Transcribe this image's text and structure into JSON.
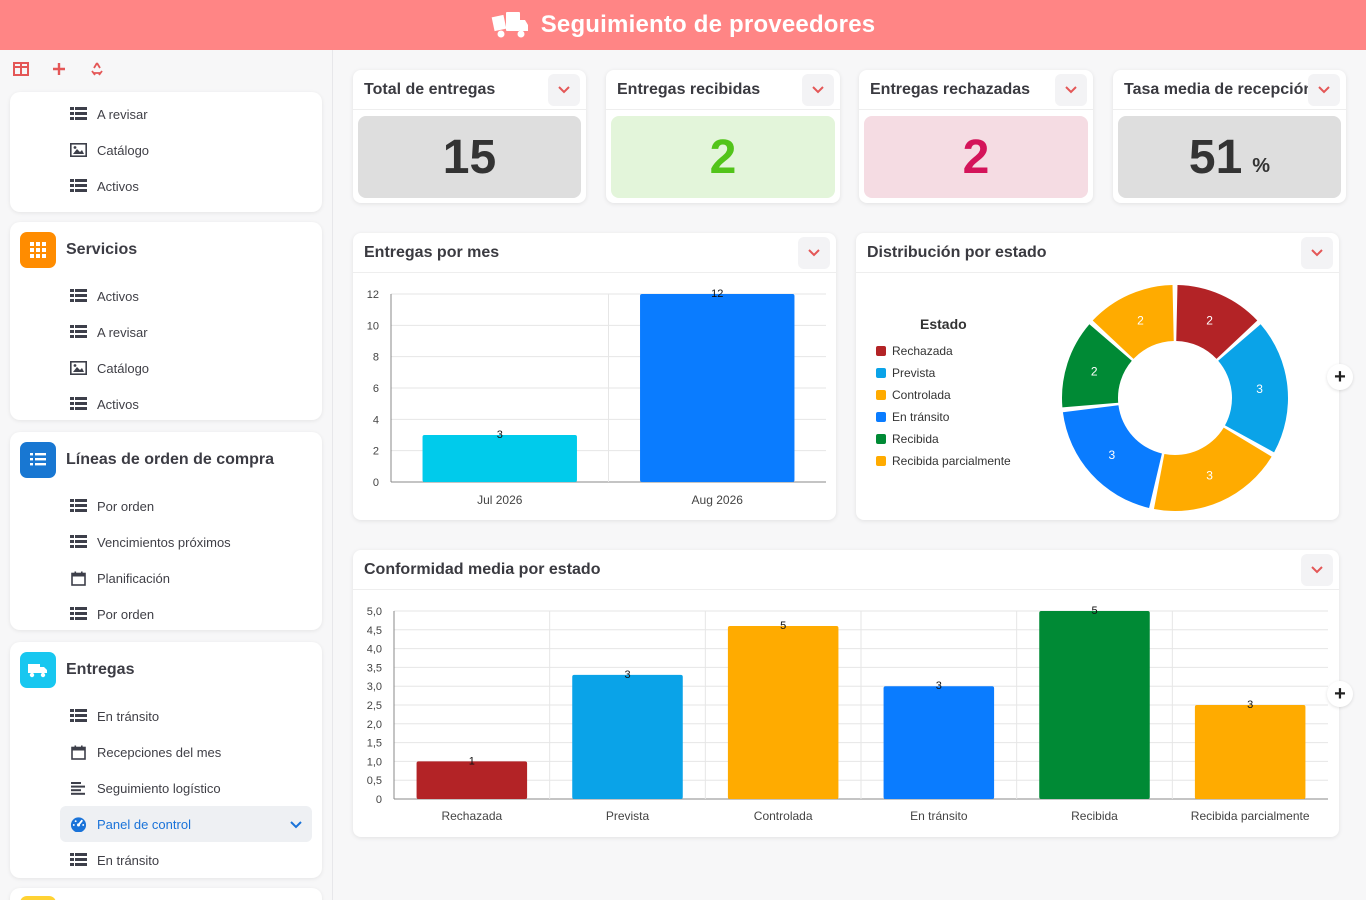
{
  "header": {
    "title": "Seguimiento de proveedores"
  },
  "sidebar": {
    "top_items": [
      "A revisar",
      "Catálogo",
      "Activos"
    ],
    "sections": [
      {
        "title": "Servicios",
        "color": "#ff8c00",
        "items": [
          "Activos",
          "A revisar",
          "Catálogo",
          "Activos"
        ]
      },
      {
        "title": "Líneas de orden de compra",
        "color": "#1877d2",
        "items": [
          "Por orden",
          "Vencimientos próximos",
          "Planificación",
          "Por orden"
        ]
      },
      {
        "title": "Entregas",
        "color": "#18c7f0",
        "items": [
          "En tránsito",
          "Recepciones del mes",
          "Seguimiento logístico",
          "Panel de control",
          "En tránsito"
        ]
      }
    ]
  },
  "kpis": [
    {
      "title": "Total de entregas",
      "value": "15",
      "unit": "",
      "bg": "#dedede",
      "color": "#333333"
    },
    {
      "title": "Entregas recibidas",
      "value": "2",
      "unit": "",
      "bg": "#e3f5da",
      "color": "#52c41a"
    },
    {
      "title": "Entregas rechazadas",
      "value": "2",
      "unit": "",
      "bg": "#f5dce3",
      "color": "#d4145a"
    },
    {
      "title": "Tasa media de recepción",
      "value": "51",
      "unit": "%",
      "bg": "#dedede",
      "color": "#333333"
    }
  ],
  "widgets": {
    "monthly": {
      "title": "Entregas por mes"
    },
    "status": {
      "title": "Distribución por estado"
    },
    "conformity": {
      "title": "Conformidad media por estado"
    }
  },
  "chart_data": [
    {
      "type": "bar",
      "title": "Entregas por mes",
      "categories": [
        "Jul 2026",
        "Aug 2026"
      ],
      "values": [
        3,
        12
      ],
      "colors": [
        "#00cbeb",
        "#0a7cff"
      ],
      "ylim": [
        0,
        12
      ],
      "yticks": [
        0,
        2,
        4,
        6,
        8,
        10,
        12
      ]
    },
    {
      "type": "pie",
      "title": "Distribución por estado",
      "legend_title": "Estado",
      "categories": [
        "Rechazada",
        "Prevista",
        "Controlada",
        "En tránsito",
        "Recibida",
        "Recibida parcialmente"
      ],
      "values": [
        2,
        3,
        3,
        3,
        2,
        2
      ],
      "colors": [
        "#b32326",
        "#0aa3e8",
        "#ffab00",
        "#0a7cff",
        "#008a35",
        "#ffab00"
      ]
    },
    {
      "type": "bar",
      "title": "Conformidad media por estado",
      "categories": [
        "Rechazada",
        "Prevista",
        "Controlada",
        "En tránsito",
        "Recibida",
        "Recibida parcialmente"
      ],
      "values": [
        1,
        3.3,
        4.6,
        3,
        5,
        2.5
      ],
      "labels": [
        "1",
        "3",
        "5",
        "3",
        "5",
        "3"
      ],
      "colors": [
        "#b32326",
        "#0aa3e8",
        "#ffab00",
        "#0a7cff",
        "#008a35",
        "#ffab00"
      ],
      "ylim": [
        0,
        5
      ],
      "yticks": [
        "0",
        "0,5",
        "1,0",
        "1,5",
        "2,0",
        "2,5",
        "3,0",
        "3,5",
        "4,0",
        "4,5",
        "5,0"
      ]
    }
  ]
}
